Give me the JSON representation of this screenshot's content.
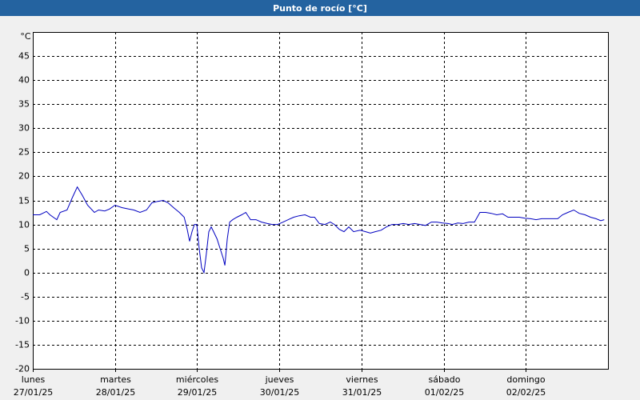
{
  "chart_data": {
    "type": "line",
    "title": "Punto de rocío [°C]",
    "y_unit": "°C",
    "xlim": [
      0,
      168
    ],
    "xticks": [
      0,
      24,
      48,
      72,
      96,
      120,
      144
    ],
    "x_tick_weekdays": [
      "lunes",
      "martes",
      "miércoles",
      "jueves",
      "viernes",
      "sábado",
      "domingo"
    ],
    "x_tick_dates": [
      "27/01/25",
      "28/01/25",
      "29/01/25",
      "30/01/25",
      "31/01/25",
      "01/02/25",
      "02/02/25"
    ],
    "ylim": [
      -20,
      50
    ],
    "yticks": [
      -20,
      -15,
      -10,
      -5,
      0,
      5,
      10,
      15,
      20,
      25,
      30,
      35,
      40,
      45
    ],
    "grid": true,
    "series": [
      {
        "name": "Punto de rocío",
        "color": "#0000c0",
        "x": [
          0,
          2,
          4,
          5,
          7,
          8,
          10,
          11.5,
          13,
          14.5,
          16,
          18,
          19.2,
          21,
          22.4,
          24,
          26,
          28,
          29.5,
          31.3,
          33.2,
          34.8,
          36.5,
          38.1,
          39.5,
          41.1,
          42.8,
          44.2,
          45.1,
          45.8,
          46.5,
          47.2,
          47.9,
          48.6,
          49.3,
          50,
          50.7,
          51.4,
          52.1,
          52.8,
          53.8,
          54.7,
          55.6,
          56.1,
          56.8,
          57.5,
          58.4,
          59.6,
          61,
          62.2,
          63.6,
          65.2,
          66.8,
          68.5,
          69.9,
          71.5,
          73.1,
          74.6,
          76.2,
          77.8,
          79.5,
          81.1,
          82.3,
          83.7,
          85.3,
          86.9,
          88.1,
          89.5,
          90.9,
          92.3,
          93.7,
          95.6,
          97.2,
          98.6,
          100,
          101.7,
          103.3,
          104.9,
          106.6,
          108.2,
          109.8,
          111.5,
          113.1,
          114.7,
          116.4,
          118,
          119.7,
          121.3,
          122.5,
          124.1,
          125.7,
          127.4,
          129,
          130.6,
          132.3,
          133.9,
          135.5,
          137.2,
          138.8,
          140.5,
          142.1,
          143.7,
          145.4,
          147,
          148.6,
          150.3,
          151.9,
          153.3,
          154.7,
          156.3,
          158,
          159.6,
          161.3,
          162.9,
          164.5,
          165.9,
          166.9
        ],
        "values": [
          12,
          12,
          12.7,
          12,
          11,
          12.5,
          13,
          15.5,
          17.8,
          16,
          14,
          12.5,
          13,
          12.8,
          13.2,
          14,
          13.5,
          13.2,
          13,
          12.5,
          13,
          14.5,
          14.8,
          15,
          14.5,
          13.5,
          12.5,
          11.5,
          9,
          6.5,
          8.5,
          10,
          10,
          5,
          1,
          0,
          4,
          8.5,
          9.5,
          8.5,
          7,
          5,
          3,
          1.5,
          7,
          10.5,
          11,
          11.5,
          12,
          12.5,
          11,
          11,
          10.5,
          10.2,
          10,
          10,
          10.5,
          11,
          11.5,
          11.8,
          12,
          11.5,
          11.5,
          10.2,
          10,
          10.5,
          10,
          9,
          8.5,
          9.5,
          8.5,
          8.8,
          8.5,
          8.2,
          8.5,
          8.8,
          9.5,
          10,
          10,
          10.2,
          10,
          10.2,
          10,
          9.8,
          10.5,
          10.5,
          10.3,
          10.2,
          10,
          10.3,
          10.2,
          10.5,
          10.5,
          12.5,
          12.5,
          12.3,
          12,
          12.2,
          11.5,
          11.5,
          11.5,
          11.3,
          11.2,
          11,
          11.2,
          11.2,
          11.2,
          11.2,
          12,
          12.5,
          13,
          12.3,
          12,
          11.5,
          11.2,
          10.8,
          11
        ]
      }
    ]
  }
}
